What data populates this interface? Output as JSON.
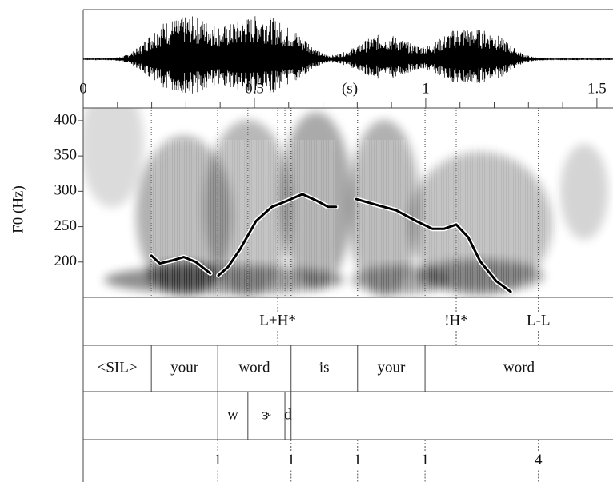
{
  "chart_data": {
    "type": "line",
    "ylabel": "F0 (Hz)",
    "xlabel": "(s)",
    "xlim": [
      0,
      1.547
    ],
    "xticks": [
      0,
      0.5,
      1,
      1.5
    ],
    "xminorticks": [
      0.1,
      0.2,
      0.3,
      0.4,
      0.6,
      0.7,
      0.8,
      0.9,
      1.1,
      1.2,
      1.3,
      1.4
    ],
    "ylim": [
      150,
      418
    ],
    "yticks": [
      200,
      250,
      300,
      350,
      400
    ],
    "series": [
      {
        "color": "#000000",
        "x": [
          0.199,
          0.224,
          0.259,
          0.294,
          0.329,
          0.371,
          null,
          0.395,
          0.423,
          0.458,
          0.505,
          0.551,
          0.598,
          0.64,
          0.68,
          0.715,
          0.738,
          null,
          0.797,
          0.855,
          0.914,
          0.972,
          1.019,
          1.054,
          1.089,
          1.124,
          1.159,
          1.206,
          1.248
        ],
        "values": [
          209,
          198,
          202,
          207,
          200,
          184,
          null,
          181,
          193,
          218,
          258,
          278,
          287,
          296,
          287,
          278,
          278,
          null,
          289,
          281,
          273,
          258,
          247,
          247,
          253,
          235,
          201,
          173,
          158
        ]
      }
    ],
    "tiers": [
      {
        "kind": "points",
        "times": [
          0.568,
          1.089,
          1.329
        ],
        "labels": [
          "L+H*",
          "!H*",
          "L-L"
        ]
      },
      {
        "kind": "intervals",
        "boundaries": [
          0.199,
          0.393,
          0.607,
          0.801,
          0.998
        ],
        "labels": [
          "<SIL>",
          "your",
          "word",
          "is",
          "your",
          "word"
        ]
      },
      {
        "kind": "intervals",
        "boundaries": [
          0.393,
          0.481,
          0.589,
          0.607
        ],
        "labels": [
          null,
          "w",
          "ɝ",
          "d",
          null
        ]
      },
      {
        "kind": "points",
        "times": [
          0.393,
          0.607,
          0.801,
          0.998,
          1.329
        ],
        "labels": [
          1,
          1,
          1,
          1,
          4
        ]
      }
    ]
  }
}
